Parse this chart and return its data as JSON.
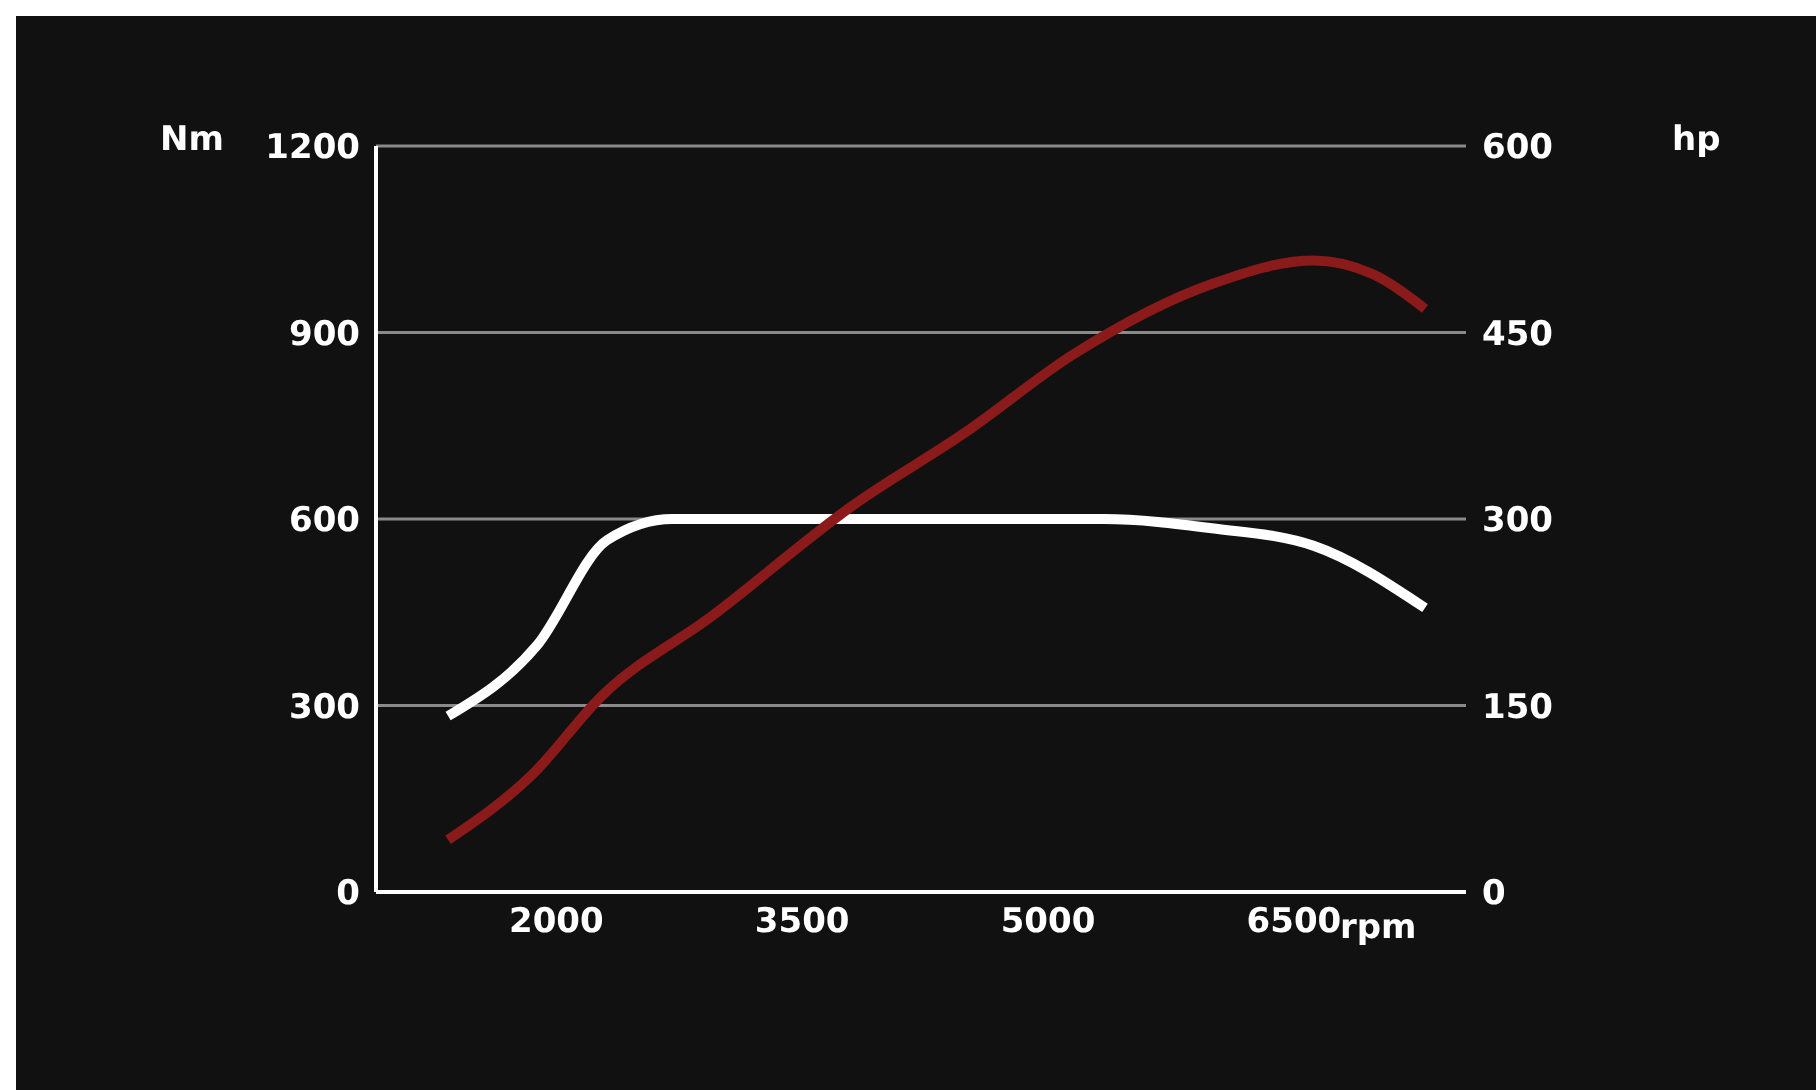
{
  "chart_data": {
    "type": "line",
    "xlabel": "rpm",
    "ylabel": "Nm",
    "y2label": "hp",
    "xlim": [
      900,
      7550
    ],
    "xticks": [
      2000,
      3500,
      5000,
      6500
    ],
    "ylim": [
      0,
      1200
    ],
    "yticks": [
      0,
      300,
      600,
      900,
      1200
    ],
    "y2lim": [
      0,
      600
    ],
    "y2ticks": [
      0,
      150,
      300,
      450,
      600
    ],
    "grid": "y",
    "marker": "none",
    "line_style": "solid",
    "series": [
      {
        "color": "#ffffff",
        "x": [
          1340,
          1880,
          2310,
          2710,
          3500,
          4500,
          5340,
          6000,
          6620,
          7300
        ],
        "values": [
          283,
          396,
          566,
          600,
          600,
          600,
          600,
          585,
          557,
          457
        ]
      },
      {
        "color": "#8b1a1a",
        "axis": "y2",
        "x": [
          1340,
          1850,
          2280,
          2950,
          3810,
          4500,
          5150,
          6000,
          6620,
          6980,
          7300
        ],
        "values": [
          42,
          94,
          158,
          222,
          311,
          370,
          432,
          489,
          508,
          497,
          469
        ]
      }
    ]
  }
}
